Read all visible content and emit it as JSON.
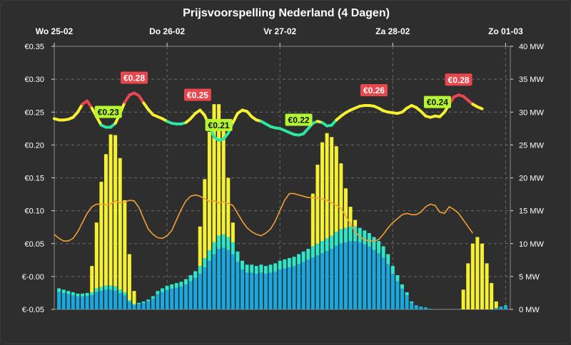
{
  "chart_data": {
    "type": "line",
    "title": "Prijsvoorspelling Nederland (4 Dagen)",
    "x_labels": [
      "Wo 25-02",
      "Do 26-02",
      "Vr 27-02",
      "Za 28-02",
      "Zo 01-03"
    ],
    "x_hours": [
      0,
      24,
      48,
      72,
      96
    ],
    "xlim": [
      0,
      97
    ],
    "y_left": {
      "ticks": [
        0.35,
        0.3,
        0.25,
        0.2,
        0.15,
        0.1,
        0.05,
        0.0,
        -0.05
      ],
      "tick_labels": [
        "€0.35",
        "€0.30",
        "€0.25",
        "€0.20",
        "€0.15",
        "€0.10",
        "€0.05",
        "€-0.00",
        "€-0.05"
      ],
      "ylim": [
        -0.05,
        0.35
      ]
    },
    "y_right": {
      "ticks": [
        40,
        35,
        30,
        25,
        20,
        15,
        10,
        5,
        0
      ],
      "tick_labels": [
        "40 MW",
        "35 MW",
        "30 MW",
        "25 MW",
        "20 MW",
        "15 MW",
        "10 MW",
        "5 MW",
        "0 MW"
      ],
      "ylim": [
        0,
        40
      ]
    },
    "grid": true,
    "price_thresholds": {
      "low": 0.235,
      "high": 0.26
    },
    "price_colors": {
      "low": "#2ee6a0",
      "mid": "#f5f032",
      "high": "#e8474e"
    },
    "price": [
      [
        0,
        0.24
      ],
      [
        1,
        0.238
      ],
      [
        2,
        0.238
      ],
      [
        3,
        0.239
      ],
      [
        4,
        0.242
      ],
      [
        5,
        0.25
      ],
      [
        6,
        0.262
      ],
      [
        7,
        0.267
      ],
      [
        8,
        0.256
      ],
      [
        9,
        0.243
      ],
      [
        10,
        0.23
      ],
      [
        11,
        0.227
      ],
      [
        12,
        0.227
      ],
      [
        13,
        0.233
      ],
      [
        14,
        0.248
      ],
      [
        15,
        0.265
      ],
      [
        16,
        0.276
      ],
      [
        17,
        0.279
      ],
      [
        18,
        0.275
      ],
      [
        19,
        0.264
      ],
      [
        20,
        0.254
      ],
      [
        21,
        0.246
      ],
      [
        22,
        0.243
      ],
      [
        23,
        0.24
      ],
      [
        24,
        0.236
      ],
      [
        25,
        0.233
      ],
      [
        26,
        0.232
      ],
      [
        27,
        0.232
      ],
      [
        28,
        0.234
      ],
      [
        29,
        0.24
      ],
      [
        30,
        0.248
      ],
      [
        31,
        0.253
      ],
      [
        32,
        0.245
      ],
      [
        33,
        0.228
      ],
      [
        34,
        0.212
      ],
      [
        35,
        0.207
      ],
      [
        36,
        0.209
      ],
      [
        37,
        0.218
      ],
      [
        38,
        0.234
      ],
      [
        39,
        0.248
      ],
      [
        40,
        0.253
      ],
      [
        41,
        0.251
      ],
      [
        42,
        0.243
      ],
      [
        43,
        0.238
      ],
      [
        44,
        0.236
      ],
      [
        45,
        0.232
      ],
      [
        46,
        0.228
      ],
      [
        47,
        0.226
      ],
      [
        48,
        0.225
      ],
      [
        49,
        0.222
      ],
      [
        50,
        0.219
      ],
      [
        51,
        0.216
      ],
      [
        52,
        0.215
      ],
      [
        53,
        0.217
      ],
      [
        54,
        0.225
      ],
      [
        55,
        0.233
      ],
      [
        56,
        0.236
      ],
      [
        57,
        0.234
      ],
      [
        58,
        0.229
      ],
      [
        59,
        0.23
      ],
      [
        60,
        0.238
      ],
      [
        61,
        0.244
      ],
      [
        62,
        0.249
      ],
      [
        63,
        0.253
      ],
      [
        64,
        0.256
      ],
      [
        65,
        0.259
      ],
      [
        66,
        0.26
      ],
      [
        67,
        0.26
      ],
      [
        68,
        0.259
      ],
      [
        69,
        0.256
      ],
      [
        70,
        0.252
      ],
      [
        71,
        0.25
      ],
      [
        72,
        0.249
      ],
      [
        73,
        0.248
      ],
      [
        74,
        0.25
      ],
      [
        75,
        0.256
      ],
      [
        76,
        0.26
      ],
      [
        77,
        0.257
      ],
      [
        78,
        0.251
      ],
      [
        79,
        0.244
      ],
      [
        80,
        0.242
      ],
      [
        81,
        0.244
      ],
      [
        82,
        0.243
      ],
      [
        83,
        0.25
      ],
      [
        84,
        0.262
      ],
      [
        85,
        0.273
      ],
      [
        86,
        0.276
      ],
      [
        87,
        0.274
      ],
      [
        88,
        0.268
      ],
      [
        89,
        0.262
      ],
      [
        90,
        0.258
      ],
      [
        91,
        0.255
      ]
    ],
    "price_labels": [
      {
        "x": 11.5,
        "y": 0.227,
        "text": "€0.23",
        "kind": "low",
        "pos": "above"
      },
      {
        "x": 17,
        "y": 0.279,
        "text": "€0.28",
        "kind": "high",
        "pos": "above"
      },
      {
        "x": 35,
        "y": 0.207,
        "text": "€0.21",
        "kind": "low",
        "pos": "above"
      },
      {
        "x": 30.5,
        "y": 0.253,
        "text": "€0.25",
        "kind": "high",
        "pos": "above"
      },
      {
        "x": 52,
        "y": 0.215,
        "text": "€0.22",
        "kind": "low",
        "pos": "above"
      },
      {
        "x": 68,
        "y": 0.26,
        "text": "€0.26",
        "kind": "high",
        "pos": "above"
      },
      {
        "x": 81.5,
        "y": 0.242,
        "text": "€0.24",
        "kind": "low",
        "pos": "above"
      },
      {
        "x": 86,
        "y": 0.276,
        "text": "€0.28",
        "kind": "high",
        "pos": "above"
      }
    ],
    "series_colors": {
      "solar": "#f5f032",
      "wind_a": "#2ee6c8",
      "wind_b": "#1aa8e0",
      "load": "#f0a035"
    },
    "solar": [
      0,
      0,
      0,
      0,
      0,
      0,
      0,
      0,
      4,
      10,
      16,
      20,
      23,
      23,
      20,
      14,
      7,
      2,
      0,
      0,
      0,
      0,
      0,
      0,
      0,
      0,
      0,
      0,
      0,
      0,
      0,
      6,
      12,
      18,
      21,
      20,
      16,
      9,
      3,
      0,
      0,
      0,
      0,
      0,
      0,
      0,
      0,
      0,
      0,
      0,
      0,
      0,
      0,
      0,
      0,
      8,
      12,
      15,
      16,
      15,
      13,
      10,
      6,
      3,
      1,
      0,
      0,
      0,
      0,
      0,
      0,
      0,
      0,
      0,
      0,
      0,
      0,
      0,
      0,
      0,
      0,
      0,
      0,
      0,
      0,
      0,
      0,
      3,
      7,
      10,
      11,
      10,
      7,
      4,
      1,
      0,
      0,
      0,
      0
    ],
    "wind_a": [
      2.8,
      3.2,
      3.0,
      2.8,
      2.6,
      2.4,
      2.4,
      2.5,
      2.6,
      3.2,
      3.4,
      3.6,
      3.6,
      3.5,
      3.0,
      2.6,
      1.4,
      0.8,
      1.0,
      1.2,
      1.5,
      2.0,
      2.8,
      3.2,
      3.6,
      3.8,
      4.0,
      4.2,
      4.6,
      5.2,
      5.8,
      6.6,
      7.8,
      9.0,
      10.2,
      11.2,
      11.4,
      11.0,
      10.2,
      8.8,
      7.4,
      6.8,
      6.8,
      6.6,
      6.8,
      6.6,
      6.8,
      7.0,
      7.4,
      7.6,
      7.8,
      8.0,
      8.4,
      8.8,
      9.2,
      9.6,
      10.0,
      10.4,
      10.8,
      11.2,
      11.8,
      12.2,
      12.4,
      12.6,
      12.6,
      12.4,
      12.0,
      11.6,
      11.0,
      10.4,
      9.6,
      8.4,
      6.6,
      5.2,
      3.8,
      2.6,
      1.2,
      0.6,
      0.4,
      0.3,
      0.1,
      0,
      0,
      0,
      0,
      0,
      0,
      0,
      0,
      0,
      0,
      0,
      0,
      0,
      0.2,
      0.4,
      0.6,
      0.6,
      0.6,
      0.6,
      0.6,
      0.6,
      0.5
    ],
    "wind_b_ratio": 0.82,
    "load": [
      11.4,
      10.8,
      10.4,
      10.4,
      10.8,
      11.8,
      13.2,
      14.6,
      15.6,
      16.0,
      16.0,
      15.9,
      16.0,
      16.5,
      16.2,
      16.3,
      16.6,
      16.5,
      15.5,
      13.8,
      12.2,
      11.4,
      10.9,
      10.8,
      11.2,
      12.0,
      13.6,
      15.2,
      16.5,
      17.2,
      17.4,
      17.2,
      16.8,
      16.4,
      16.5,
      16.2,
      16.4,
      16.1,
      15.8,
      14.6,
      13.4,
      12.4,
      11.8,
      11.4,
      11.2,
      11.6,
      12.2,
      13.4,
      15.0,
      16.6,
      17.6,
      17.6,
      17.4,
      17.2,
      17.0,
      17.0,
      16.9,
      16.8,
      16.6,
      16.2,
      15.8,
      15.4,
      14.2,
      13.0,
      11.8,
      11.0,
      10.6,
      10.4,
      10.4,
      10.6,
      11.4,
      12.4,
      13.2,
      13.8,
      14.4,
      14.6,
      14.4,
      14.4,
      14.8,
      15.6,
      16.0,
      15.8,
      14.8,
      14.6,
      15.6,
      15.2,
      14.6,
      13.6,
      12.6,
      11.6
    ]
  }
}
